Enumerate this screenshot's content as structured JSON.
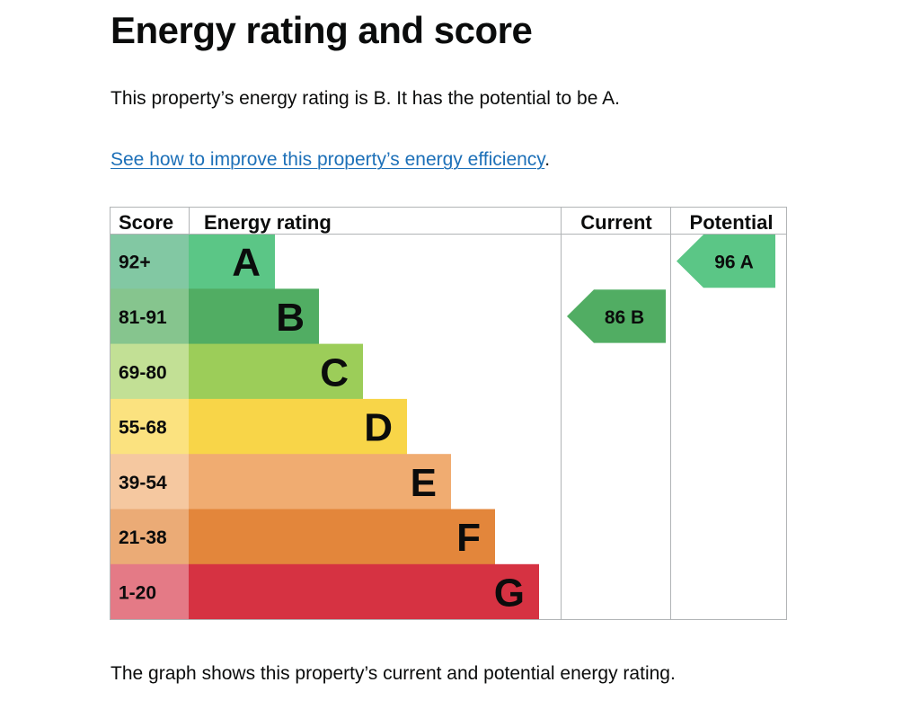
{
  "page": {
    "title": "Energy rating and score",
    "summary": "This property’s energy rating is B. It has the potential to be A.",
    "improve_link": "See how to improve this property’s energy efficiency",
    "improve_suffix": ".",
    "caption": "The graph shows this property’s current and potential energy rating."
  },
  "chart_data": {
    "type": "bar",
    "headers": {
      "score": "Score",
      "rating": "Energy rating",
      "current": "Current",
      "potential": "Potential"
    },
    "bands": [
      {
        "letter": "A",
        "score": "92+",
        "color": "#5bc686",
        "light": "#82c8a3"
      },
      {
        "letter": "B",
        "score": "81-91",
        "color": "#51ad63",
        "light": "#86c58e"
      },
      {
        "letter": "C",
        "score": "69-80",
        "color": "#9ccd59",
        "light": "#c2e095"
      },
      {
        "letter": "D",
        "score": "55-68",
        "color": "#f8d548",
        "light": "#fbe27f"
      },
      {
        "letter": "E",
        "score": "39-54",
        "color": "#f0ac71",
        "light": "#f5c8a0"
      },
      {
        "letter": "F",
        "score": "21-38",
        "color": "#e3863b",
        "light": "#ebab76"
      },
      {
        "letter": "G",
        "score": "1-20",
        "color": "#d63242",
        "light": "#e47a86"
      }
    ],
    "current": {
      "value": 86,
      "band": "B",
      "label": "86 B",
      "color": "#51ad63"
    },
    "potential": {
      "value": 96,
      "band": "A",
      "label": "96 A",
      "color": "#5bc686"
    }
  }
}
